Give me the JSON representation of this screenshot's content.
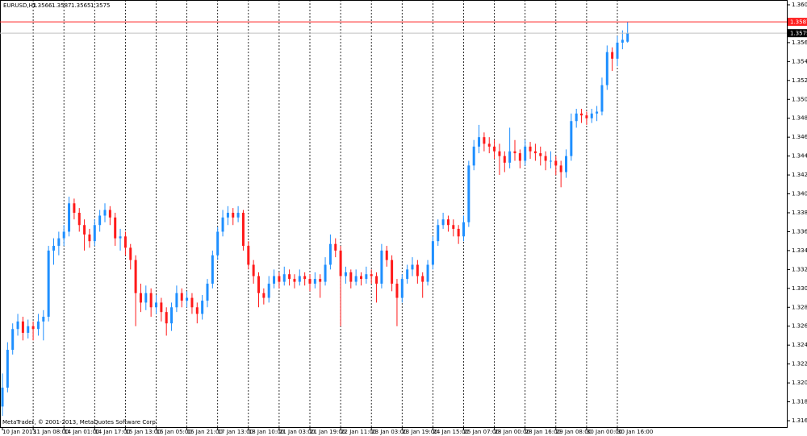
{
  "chart_data": {
    "type": "candlestick",
    "title": "EURUSD,H1",
    "footer": "MetaTrader, © 2001-2013, MetaQuotes Software Corp.",
    "up_color": "#1e8fff",
    "down_color": "#ff1a1a",
    "grid": true,
    "ylim": [
      1.31582,
      1.36101
    ],
    "yticks": [
      1.3165,
      1.3185,
      1.3205,
      1.3225,
      1.3245,
      1.3265,
      1.3285,
      1.3305,
      1.3325,
      1.3345,
      1.3365,
      1.3385,
      1.3405,
      1.3425,
      1.3445,
      1.3465,
      1.3485,
      1.3505,
      1.3525,
      1.3545,
      1.3565,
      1.3585,
      1.3605
    ],
    "price_lines": [
      {
        "value": 1.3587,
        "color": "#ff2020",
        "label_bg": "#ff2020"
      },
      {
        "value": 1.3575,
        "color": "#c0c0c0",
        "label_bg": "#000000"
      }
    ],
    "categories": [
      "10 Jan 2013",
      null,
      null,
      null,
      null,
      null,
      "11 Jan 08:00",
      null,
      null,
      null,
      null,
      null,
      "14 Jan 01:00",
      null,
      null,
      null,
      null,
      null,
      "14 Jan 17:00",
      null,
      null,
      null,
      null,
      null,
      "15 Jan 13:00",
      null,
      null,
      null,
      null,
      null,
      "16 Jan 05:00",
      null,
      null,
      null,
      null,
      null,
      "16 Jan 21:00",
      null,
      null,
      null,
      null,
      null,
      "17 Jan 13:00",
      null,
      null,
      null,
      null,
      null,
      "18 Jan 10:00",
      null,
      null,
      null,
      null,
      null,
      "21 Jan 03:00",
      null,
      null,
      null,
      null,
      null,
      "21 Jan 19:00",
      null,
      null,
      null,
      null,
      null,
      "22 Jan 11:00",
      null,
      null,
      null,
      null,
      null,
      "23 Jan 03:00",
      null,
      null,
      null,
      null,
      null,
      "23 Jan 19:00",
      null,
      null,
      null,
      null,
      null,
      "24 Jan 15:00",
      null,
      null,
      null,
      null,
      null,
      "25 Jan 07:00",
      null,
      null,
      null,
      null,
      null,
      "28 Jan 00:00",
      null,
      null,
      null,
      null,
      null,
      "28 Jan 16:00",
      null,
      null,
      null,
      null,
      null,
      "29 Jan 08:00",
      null,
      null,
      null,
      null,
      null,
      "30 Jan 00:00",
      null,
      null,
      null,
      null,
      null,
      "30 Jan 16:00",
      null,
      null
    ],
    "open": [
      1.318,
      1.32,
      1.324,
      1.3262,
      1.327,
      1.3258,
      1.3265,
      1.3262,
      1.327,
      1.3275,
      1.3345,
      1.335,
      1.3358,
      1.3365,
      1.3395,
      1.3385,
      1.3372,
      1.3362,
      1.3355,
      1.3372,
      1.3382,
      1.3388,
      1.338,
      1.3358,
      1.336,
      1.3348,
      1.3335,
      1.33,
      1.329,
      1.33,
      1.3285,
      1.329,
      1.328,
      1.3268,
      1.3285,
      1.33,
      1.3292,
      1.3295,
      1.3285,
      1.3278,
      1.3292,
      1.331,
      1.334,
      1.3365,
      1.338,
      1.3385,
      1.338,
      1.3385,
      1.335,
      1.333,
      1.3318,
      1.33,
      1.3295,
      1.331,
      1.3318,
      1.3312,
      1.332,
      1.3315,
      1.3312,
      1.3318,
      1.3315,
      1.331,
      1.3315,
      1.3312,
      1.333,
      1.3352,
      1.3345,
      1.3318,
      1.3322,
      1.3312,
      1.3318,
      1.3315,
      1.332,
      1.3318,
      1.331,
      1.3345,
      1.3335,
      1.331,
      1.3295,
      1.3315,
      1.3325,
      1.333,
      1.3318,
      1.3312,
      1.333,
      1.3355,
      1.3372,
      1.3378,
      1.3372,
      1.3368,
      1.336,
      1.3375,
      1.3435,
      1.3455,
      1.3465,
      1.3458,
      1.3455,
      1.345,
      1.3445,
      1.3438,
      1.345,
      1.3448,
      1.344,
      1.3455,
      1.345,
      1.3448,
      1.3445,
      1.344,
      1.344,
      1.3435,
      1.3428,
      1.3445,
      1.3482,
      1.349,
      1.3488,
      1.3485,
      1.349,
      1.3492,
      1.352,
      1.3555,
      1.3548,
      1.3565,
      1.3566
    ],
    "high": [
      1.3215,
      1.3248,
      1.3268,
      1.3278,
      1.3275,
      1.3272,
      1.327,
      1.3278,
      1.3282,
      1.335,
      1.3358,
      1.3365,
      1.3372,
      1.3402,
      1.34,
      1.339,
      1.3378,
      1.3368,
      1.3378,
      1.3388,
      1.3395,
      1.3392,
      1.3385,
      1.3368,
      1.3365,
      1.3352,
      1.334,
      1.331,
      1.3308,
      1.3305,
      1.3298,
      1.3295,
      1.3285,
      1.329,
      1.3308,
      1.3305,
      1.3302,
      1.33,
      1.329,
      1.3298,
      1.3315,
      1.3345,
      1.337,
      1.3388,
      1.3392,
      1.339,
      1.3392,
      1.3388,
      1.3355,
      1.3335,
      1.3322,
      1.3305,
      1.3318,
      1.3325,
      1.3322,
      1.3328,
      1.3325,
      1.332,
      1.3325,
      1.3322,
      1.332,
      1.3322,
      1.332,
      1.3338,
      1.3362,
      1.3358,
      1.335,
      1.3328,
      1.3325,
      1.3325,
      1.3322,
      1.3328,
      1.3325,
      1.3322,
      1.3352,
      1.335,
      1.334,
      1.3315,
      1.332,
      1.333,
      1.3338,
      1.3335,
      1.3322,
      1.3335,
      1.336,
      1.3378,
      1.3385,
      1.3382,
      1.3378,
      1.3372,
      1.3382,
      1.344,
      1.3462,
      1.3478,
      1.347,
      1.3465,
      1.3462,
      1.3458,
      1.345,
      1.3475,
      1.3462,
      1.3452,
      1.3462,
      1.346,
      1.3458,
      1.3455,
      1.345,
      1.345,
      1.3445,
      1.344,
      1.3452,
      1.349,
      1.3495,
      1.3495,
      1.3492,
      1.3495,
      1.3498,
      1.3528,
      1.3562,
      1.356,
      1.3572,
      1.3578,
      1.3587
    ],
    "low": [
      1.317,
      1.3195,
      1.3235,
      1.3255,
      1.325,
      1.3252,
      1.325,
      1.3255,
      1.325,
      1.327,
      1.333,
      1.334,
      1.335,
      1.336,
      1.3378,
      1.3365,
      1.3345,
      1.3348,
      1.335,
      1.3365,
      1.3375,
      1.3372,
      1.335,
      1.3345,
      1.334,
      1.3325,
      1.3265,
      1.328,
      1.3282,
      1.3275,
      1.3278,
      1.327,
      1.3255,
      1.326,
      1.328,
      1.3285,
      1.3285,
      1.3278,
      1.3268,
      1.3272,
      1.3285,
      1.3305,
      1.3335,
      1.336,
      1.3372,
      1.3372,
      1.3375,
      1.3345,
      1.3325,
      1.331,
      1.3285,
      1.3288,
      1.329,
      1.3305,
      1.3305,
      1.3308,
      1.3308,
      1.3305,
      1.3308,
      1.3308,
      1.3302,
      1.3305,
      1.3295,
      1.3308,
      1.3325,
      1.3338,
      1.3265,
      1.331,
      1.3305,
      1.3308,
      1.3308,
      1.331,
      1.331,
      1.329,
      1.3305,
      1.3328,
      1.3302,
      1.3265,
      1.329,
      1.331,
      1.3318,
      1.331,
      1.3295,
      1.3308,
      1.3325,
      1.335,
      1.3368,
      1.3365,
      1.336,
      1.3352,
      1.3355,
      1.337,
      1.343,
      1.3448,
      1.345,
      1.3448,
      1.3442,
      1.3425,
      1.3428,
      1.3432,
      1.344,
      1.3432,
      1.3435,
      1.3442,
      1.344,
      1.3435,
      1.343,
      1.3432,
      1.3425,
      1.3412,
      1.3422,
      1.344,
      1.3475,
      1.348,
      1.3478,
      1.348,
      1.3482,
      1.3488,
      1.3515,
      1.3535,
      1.354,
      1.3558,
      1.3565
    ],
    "close": [
      1.32,
      1.324,
      1.3262,
      1.327,
      1.3258,
      1.3265,
      1.3262,
      1.327,
      1.3275,
      1.3345,
      1.335,
      1.3358,
      1.3365,
      1.3395,
      1.3385,
      1.3372,
      1.3362,
      1.3355,
      1.3372,
      1.3382,
      1.3388,
      1.338,
      1.3358,
      1.336,
      1.3348,
      1.3335,
      1.33,
      1.329,
      1.33,
      1.3285,
      1.329,
      1.328,
      1.3268,
      1.3285,
      1.33,
      1.3292,
      1.3295,
      1.3285,
      1.3278,
      1.3292,
      1.331,
      1.334,
      1.3365,
      1.338,
      1.3385,
      1.338,
      1.3385,
      1.335,
      1.333,
      1.3318,
      1.33,
      1.3295,
      1.331,
      1.3318,
      1.3312,
      1.332,
      1.3315,
      1.3312,
      1.3318,
      1.3315,
      1.331,
      1.3315,
      1.3312,
      1.333,
      1.3352,
      1.3345,
      1.3318,
      1.3322,
      1.3312,
      1.3318,
      1.3315,
      1.332,
      1.3318,
      1.331,
      1.3345,
      1.3335,
      1.331,
      1.3295,
      1.3315,
      1.3325,
      1.333,
      1.3318,
      1.3312,
      1.333,
      1.3355,
      1.3372,
      1.3378,
      1.3372,
      1.3368,
      1.336,
      1.3375,
      1.3435,
      1.3455,
      1.3465,
      1.3458,
      1.3455,
      1.345,
      1.3445,
      1.3438,
      1.345,
      1.3448,
      1.344,
      1.3455,
      1.345,
      1.3448,
      1.3445,
      1.344,
      1.344,
      1.3435,
      1.3428,
      1.3445,
      1.3482,
      1.349,
      1.3488,
      1.3485,
      1.349,
      1.3492,
      1.352,
      1.3555,
      1.3548,
      1.3565,
      1.3568,
      1.3575
    ]
  }
}
